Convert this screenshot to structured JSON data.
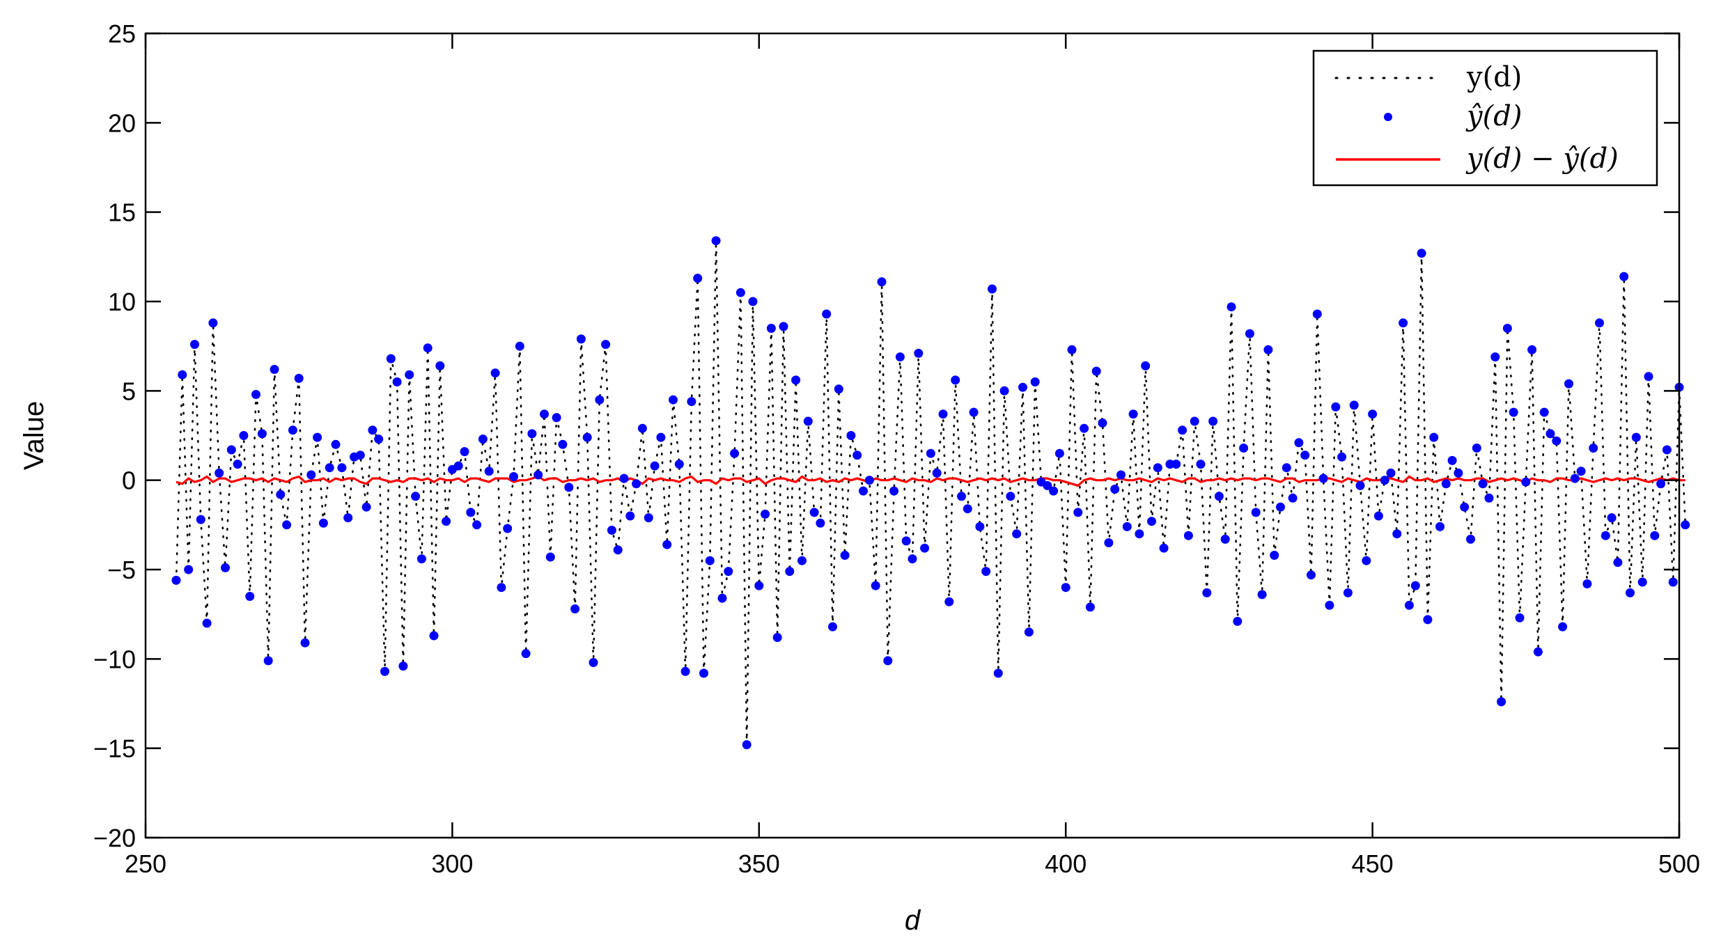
{
  "chart_data": {
    "type": "line",
    "title": "",
    "xlabel": "d",
    "ylabel": "Value",
    "xlim": [
      250,
      500
    ],
    "ylim": [
      -20,
      25
    ],
    "xticks": [
      "250",
      "300",
      "350",
      "400",
      "450",
      "500"
    ],
    "yticks": [
      "25",
      "20",
      "15",
      "10",
      "5",
      "0",
      "−5",
      "−10",
      "−15",
      "−20"
    ],
    "grid": false,
    "legend_position": "top-right",
    "legend": [
      "y(d)",
      "ŷ(d)",
      "y(d) − ŷ(d)"
    ],
    "colors": {
      "actual": "#000000",
      "predicted": "#0000ff",
      "residual": "#ff0000"
    },
    "x_start": 255,
    "y_values": [
      -5.6,
      5.9,
      -5.0,
      7.6,
      -2.2,
      -8.0,
      8.8,
      0.4,
      -4.9,
      1.7,
      0.9,
      2.5,
      -6.5,
      4.8,
      2.6,
      -10.1,
      6.2,
      -0.8,
      -2.5,
      2.8,
      5.7,
      -9.1,
      0.3,
      2.4,
      -2.4,
      0.7,
      2.0,
      0.7,
      -2.1,
      1.3,
      1.4,
      -1.5,
      2.8,
      2.3,
      -10.7,
      6.8,
      5.5,
      -10.4,
      5.9,
      -0.9,
      -4.4,
      7.4,
      -8.7,
      6.4,
      -2.3,
      0.6,
      0.8,
      1.6,
      -1.8,
      -2.5,
      2.3,
      0.5,
      6.0,
      -6.0,
      -2.7,
      0.2,
      7.5,
      -9.7,
      2.6,
      0.3,
      3.7,
      -4.3,
      3.5,
      2.0,
      -0.4,
      -7.2,
      7.9,
      2.4,
      -10.2,
      4.5,
      7.6,
      -2.8,
      -3.9,
      0.1,
      -2.0,
      -0.2,
      2.9,
      -2.1,
      0.8,
      2.4,
      -3.6,
      4.5,
      0.9,
      -10.7,
      4.4,
      11.3,
      -10.8,
      -4.5,
      13.4,
      -6.6,
      -5.1,
      1.5,
      10.5,
      -14.8,
      10.0,
      -5.9,
      -1.9,
      8.5,
      -8.8,
      8.6,
      -5.1,
      5.6,
      -4.5,
      3.3,
      -1.8,
      -2.4,
      9.3,
      -8.2,
      5.1,
      -4.2,
      2.5,
      1.4,
      -0.6,
      0.0,
      -5.9,
      11.1,
      -10.1,
      -0.6,
      6.9,
      -3.4,
      -4.4,
      7.1,
      -3.8,
      1.5,
      0.4,
      3.7,
      -6.8,
      5.6,
      -0.9,
      -1.6,
      3.8,
      -2.6,
      -5.1,
      10.7,
      -10.8,
      5.0,
      -0.9,
      -3.0,
      5.2,
      -8.5,
      5.5,
      -0.1,
      -0.3,
      -0.6,
      1.5,
      -6.0,
      7.3,
      -1.8,
      2.9,
      -7.1,
      6.1,
      3.2,
      -3.5,
      -0.5,
      0.3,
      -2.6,
      3.7,
      -3.0,
      6.4,
      -2.3,
      0.7,
      -3.8,
      0.9,
      0.9,
      2.8,
      -3.1,
      3.3,
      0.9,
      -6.3,
      3.3,
      -0.9,
      -3.3,
      9.7,
      -7.9,
      1.8,
      8.2,
      -1.8,
      -6.4,
      7.3,
      -4.2,
      -1.5,
      0.7,
      -1.0,
      2.1,
      1.4,
      -5.3,
      9.3,
      0.1,
      -7.0,
      4.1,
      1.3,
      -6.3,
      4.2,
      -0.3,
      -4.5,
      3.7,
      -2.0,
      0.0,
      0.4,
      -3.0,
      8.8,
      -7.0,
      -5.9,
      12.7,
      -7.8,
      2.4,
      -2.6,
      -0.2,
      1.1,
      0.4,
      -1.5,
      -3.3,
      1.8,
      -0.2,
      -1.0,
      6.9,
      -12.4,
      8.5,
      3.8,
      -7.7,
      -0.1,
      7.3,
      -9.6,
      3.8,
      2.6,
      2.2,
      -8.2,
      5.4,
      0.1,
      0.5,
      -5.8,
      1.8,
      8.8,
      -3.1,
      -2.1,
      -4.6,
      11.4,
      -6.3,
      2.4,
      -5.7,
      5.8,
      -3.1,
      -0.2,
      1.7,
      -5.7,
      5.2,
      -2.5
    ],
    "residual_values": [
      -0.1,
      -0.2,
      0.1,
      -0.1,
      0.0,
      0.2,
      -0.1,
      0.1,
      0.1,
      -0.1,
      0.0,
      0.1,
      0.1,
      0.0,
      0.1,
      -0.1,
      0.1,
      0.0,
      -0.1,
      0.1,
      0.2,
      -0.1,
      0.0,
      0.0,
      0.1,
      -0.1,
      0.1,
      0.0,
      0.1,
      0.1,
      -0.1,
      -0.2,
      0.1,
      0.1,
      0.0,
      -0.1,
      0.0,
      -0.1,
      0.1,
      0.1,
      0.0,
      0.1,
      -0.1,
      0.1,
      0.0,
      0.0,
      0.1,
      -0.1,
      0.1,
      0.1,
      0.0,
      -0.1,
      0.1,
      0.1,
      0.1,
      -0.1,
      0.0,
      0.0,
      0.1,
      0.2,
      0.0,
      0.1,
      0.1,
      -0.1,
      0.0,
      0.0,
      0.1,
      0.0,
      0.1,
      -0.1,
      0.0,
      0.0,
      0.1,
      -0.1,
      0.1,
      0.0,
      -0.2,
      0.1,
      0.0,
      0.1,
      0.0,
      0.0,
      -0.1,
      0.1,
      0.2,
      -0.1,
      0.0,
      0.0,
      -0.2,
      0.1,
      0.0,
      0.1,
      0.1,
      -0.1,
      0.0,
      0.1,
      -0.2,
      0.0,
      0.1,
      0.1,
      0.0,
      -0.1,
      0.2,
      0.0,
      0.0,
      0.1,
      -0.1,
      0.0,
      -0.1,
      0.1,
      0.0,
      0.1,
      0.0,
      -0.1,
      0.1,
      0.0,
      0.0,
      0.1,
      0.0,
      -0.1,
      0.1,
      0.0,
      0.0,
      -0.1,
      0.1,
      0.0,
      0.1,
      0.1,
      0.0,
      -0.1,
      0.0,
      0.1,
      0.0,
      0.1,
      0.0,
      0.1,
      -0.1,
      0.0,
      0.1,
      0.0,
      0.0,
      0.1,
      0.1,
      0.0,
      0.0,
      -0.1,
      -0.2,
      -0.3,
      0.0,
      0.1,
      0.0,
      0.0,
      0.1,
      0.0,
      0.1,
      0.0,
      0.0,
      0.1,
      0.0,
      -0.1,
      0.1,
      0.0,
      0.1,
      0.0,
      -0.1,
      0.1,
      0.1,
      -0.1,
      0.0,
      0.0,
      0.1,
      0.0,
      0.1,
      0.0,
      0.1,
      0.1,
      0.0,
      0.1,
      0.1,
      0.0,
      -0.1,
      0.1,
      0.1,
      -0.1,
      0.0,
      0.0,
      0.0,
      0.1,
      0.1,
      0.0,
      -0.1,
      0.1,
      0.0,
      -0.1,
      0.1,
      0.0,
      0.0,
      0.1,
      0.1,
      0.0,
      -0.1,
      0.2,
      0.0,
      0.0,
      0.1,
      -0.1,
      0.0,
      0.1,
      0.0,
      0.1,
      0.0,
      0.0,
      0.1,
      0.1,
      -0.1,
      0.0,
      0.1,
      0.0,
      0.1,
      0.0,
      -0.1,
      0.1,
      0.0,
      0.0,
      -0.1,
      0.1,
      0.1,
      0.0,
      0.0,
      0.1,
      0.0,
      -0.1,
      0.0,
      0.1,
      0.0,
      0.1,
      0.0,
      0.1,
      0.1,
      0.0,
      -0.1,
      0.0,
      0.1,
      0.0,
      0.1,
      0.0,
      0.0,
      -0.1,
      0.0,
      0.1,
      0.0
    ]
  }
}
